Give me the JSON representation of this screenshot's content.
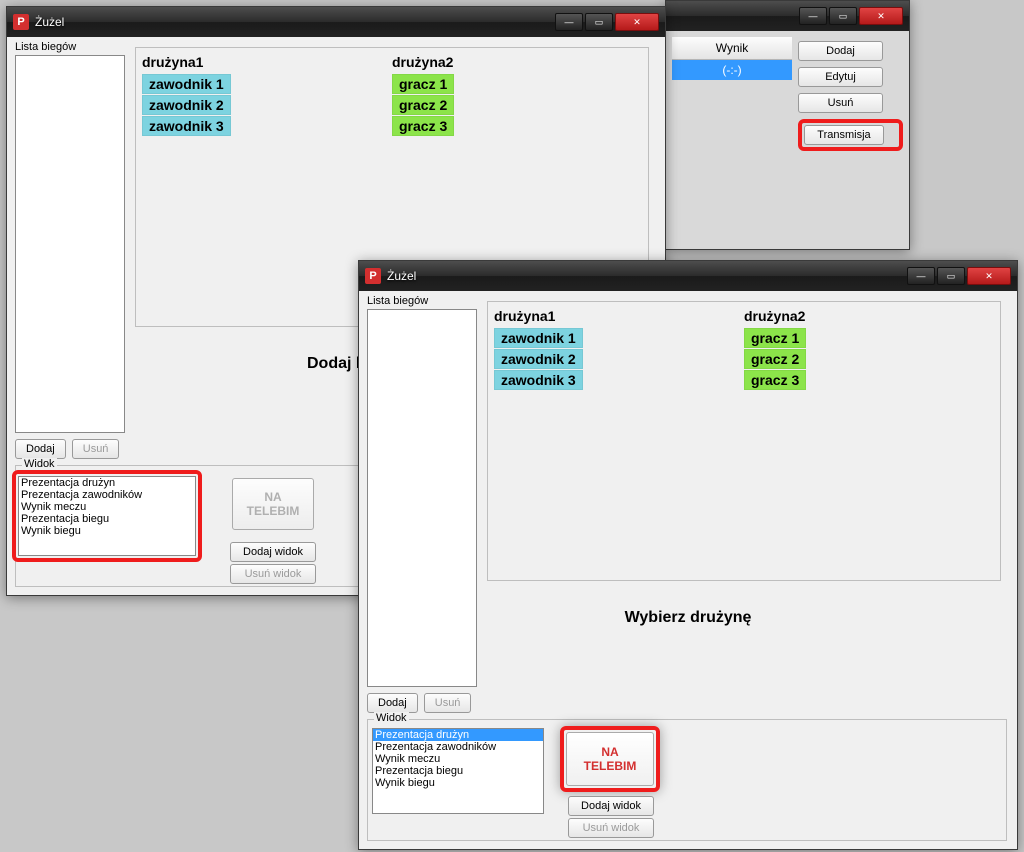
{
  "colors": {
    "player_team1_bg": "#7dd3e0",
    "player_team2_bg": "#8ce44a"
  },
  "back_window": {
    "result_header": "Wynik",
    "result_value": "(-:-)",
    "buttons": [
      "Dodaj",
      "Edytuj",
      "Usuń",
      "Transmisja"
    ]
  },
  "win1": {
    "title": "Żużel",
    "list_label": "Lista biegów",
    "team1_header": "drużyna1",
    "team2_header": "drużyna2",
    "team1_players": [
      "zawodnik 1",
      "zawodnik 2",
      "zawodnik 3"
    ],
    "team2_players": [
      "gracz 1",
      "gracz 2",
      "gracz 3"
    ],
    "center_text": "Dodaj l",
    "btn_dodaj": "Dodaj",
    "btn_usun": "Usuń",
    "group_label": "Widok",
    "view_items": [
      "Prezentacja drużyn",
      "Prezentacja zawodników",
      "Wynik meczu",
      "Prezentacja biegu",
      "Wynik biegu"
    ],
    "telebim_label": "NA\nTELEBIM",
    "btn_dodaj_widok": "Dodaj widok",
    "btn_usun_widok": "Usuń widok"
  },
  "win2": {
    "title": "Żużel",
    "list_label": "Lista biegów",
    "team1_header": "drużyna1",
    "team2_header": "drużyna2",
    "team1_players": [
      "zawodnik 1",
      "zawodnik 2",
      "zawodnik 3"
    ],
    "team2_players": [
      "gracz 1",
      "gracz 2",
      "gracz 3"
    ],
    "center_text": "Wybierz drużynę",
    "btn_dodaj": "Dodaj",
    "btn_usun": "Usuń",
    "group_label": "Widok",
    "view_items": [
      "Prezentacja drużyn",
      "Prezentacja zawodników",
      "Wynik meczu",
      "Prezentacja biegu",
      "Wynik biegu"
    ],
    "view_selected_index": 0,
    "telebim_label": "NA\nTELEBIM",
    "btn_dodaj_widok": "Dodaj widok",
    "btn_usun_widok": "Usuń widok"
  }
}
